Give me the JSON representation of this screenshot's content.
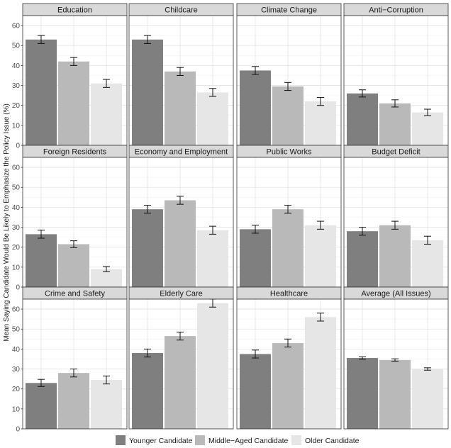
{
  "chart_data": {
    "type": "bar",
    "ylabel": "Mean Saying Candidate Would Be Likely to Emphasize the Policy Issue (%)",
    "ylim": [
      0,
      65
    ],
    "yticks": [
      0,
      10,
      20,
      30,
      40,
      50,
      60
    ],
    "grid": true,
    "legend_position": "bottom",
    "series": [
      {
        "name": "Younger Candidate",
        "color": "#7f7f7f"
      },
      {
        "name": "Middle−Aged Candidate",
        "color": "#b9b9b9"
      },
      {
        "name": "Older Candidate",
        "color": "#e6e6e6"
      }
    ],
    "panels": [
      {
        "title": "Education",
        "values": [
          53,
          42,
          31
        ],
        "errors": [
          2,
          2,
          2
        ]
      },
      {
        "title": "Childcare",
        "values": [
          53,
          37,
          26.5
        ],
        "errors": [
          2,
          2,
          2
        ]
      },
      {
        "title": "Climate Change",
        "values": [
          37.5,
          29.5,
          22
        ],
        "errors": [
          2,
          2,
          2
        ]
      },
      {
        "title": "Anti−Corruption",
        "values": [
          26,
          21,
          16.5
        ],
        "errors": [
          1.8,
          1.8,
          1.6
        ]
      },
      {
        "title": "Foreign Residents",
        "values": [
          26.5,
          21.5,
          9
        ],
        "errors": [
          2,
          1.7,
          1.3
        ]
      },
      {
        "title": "Economy and Employment",
        "values": [
          39,
          43.5,
          28.5
        ],
        "errors": [
          2,
          2,
          2
        ]
      },
      {
        "title": "Public Works",
        "values": [
          29,
          39,
          31
        ],
        "errors": [
          2,
          2,
          2
        ]
      },
      {
        "title": "Budget Deficit",
        "values": [
          28,
          31,
          23.5
        ],
        "errors": [
          2,
          2,
          2
        ]
      },
      {
        "title": "Crime and Safety",
        "values": [
          23,
          28,
          24.5
        ],
        "errors": [
          1.8,
          2,
          2
        ]
      },
      {
        "title": "Elderly Care",
        "values": [
          38,
          46.5,
          63
        ],
        "errors": [
          2,
          2,
          2
        ]
      },
      {
        "title": "Healthcare",
        "values": [
          37.5,
          43,
          56
        ],
        "errors": [
          2,
          2,
          2
        ]
      },
      {
        "title": "Average (All Issues)",
        "values": [
          35.5,
          34.5,
          30
        ],
        "errors": [
          0.6,
          0.6,
          0.6
        ]
      }
    ]
  }
}
